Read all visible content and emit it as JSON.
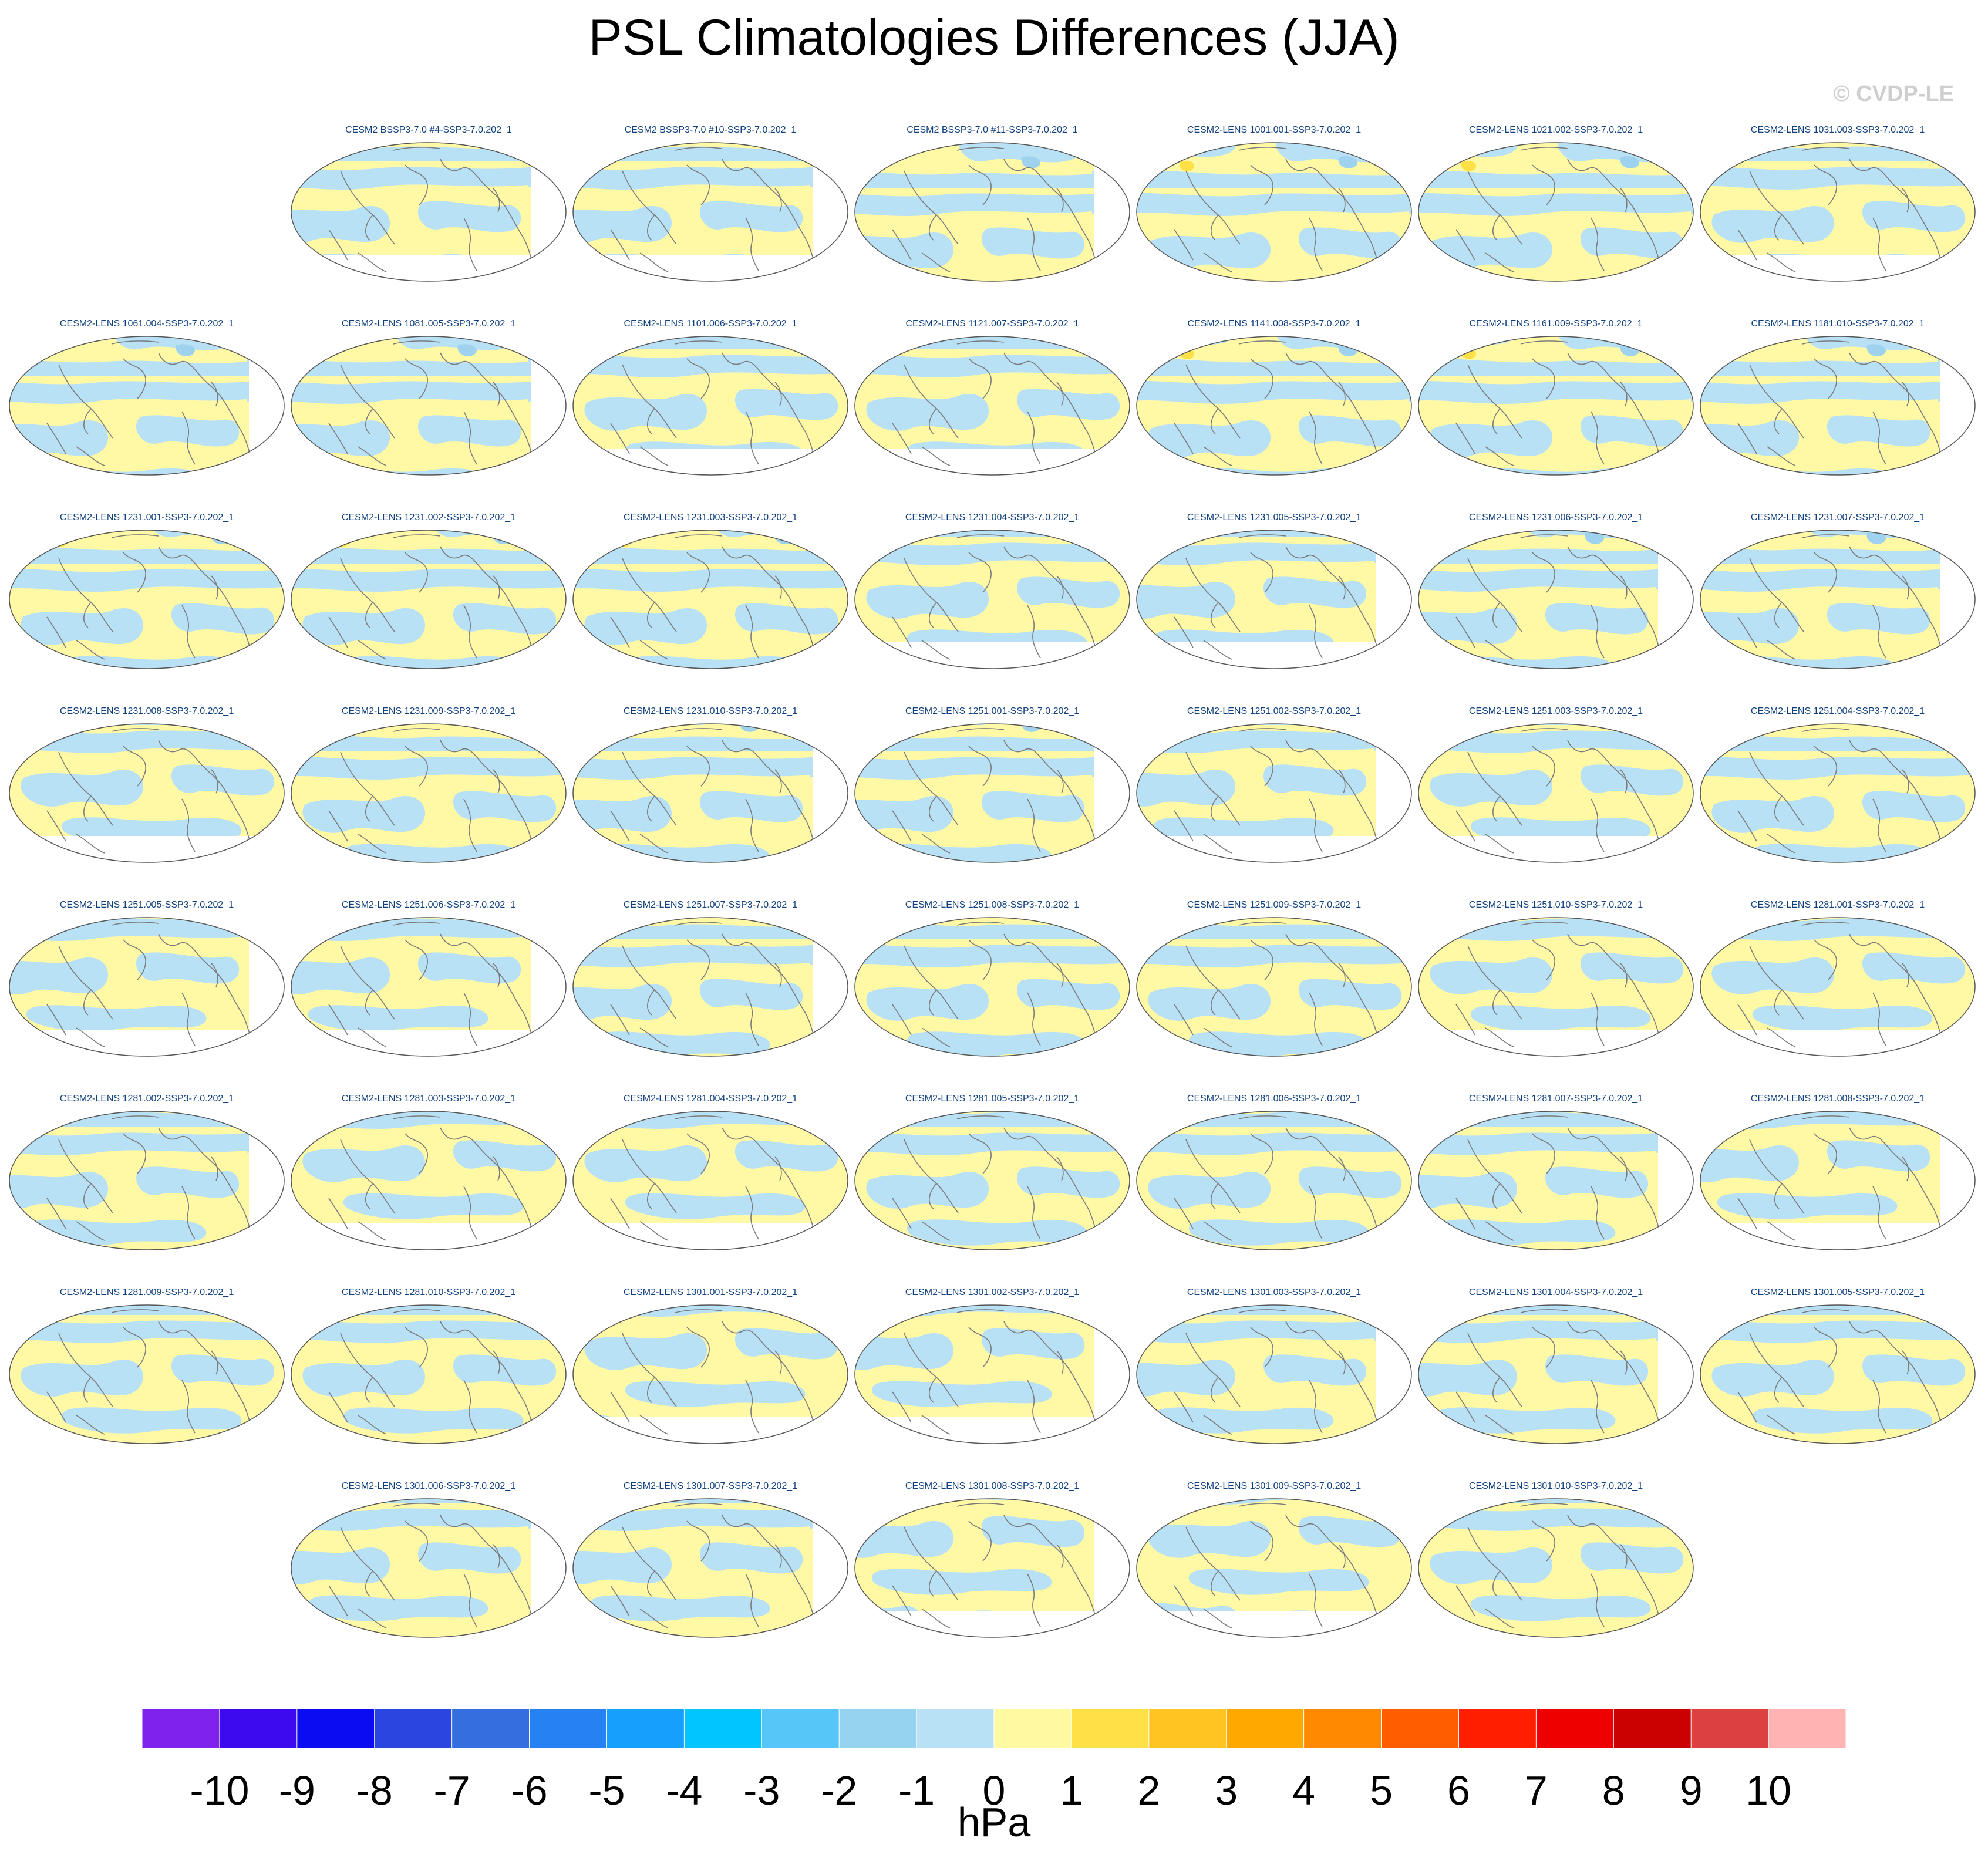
{
  "title": "PSL Climatologies Differences (JJA)",
  "watermark": "© CVDP-LE",
  "colorbar": {
    "units": "hPa",
    "tick_labels": [
      "-10",
      "-9",
      "-8",
      "-7",
      "-6",
      "-5",
      "-4",
      "-3",
      "-2",
      "-1",
      "0",
      "1",
      "2",
      "3",
      "4",
      "5",
      "6",
      "7",
      "8",
      "9",
      "10"
    ],
    "colors": [
      "#7f22ee",
      "#3d0af0",
      "#0c0cf2",
      "#2b45e0",
      "#356ede",
      "#2682f2",
      "#16a0fd",
      "#00c5ff",
      "#56c6f8",
      "#96d3f0",
      "#b8e1f6",
      "#fffaa2",
      "#ffe046",
      "#ffc421",
      "#ffa900",
      "#ff8901",
      "#ff5d00",
      "#ff1f00",
      "#ee0000",
      "#cb0000",
      "#dc4040",
      "#ffb3b3"
    ]
  },
  "chart_data": {
    "type": "heatmap",
    "title": "PSL Climatologies Differences (JJA)",
    "variable": "PSL",
    "season": "JJA",
    "units": "hPa",
    "levels": [
      -10,
      -9,
      -8,
      -7,
      -6,
      -5,
      -4,
      -3,
      -2,
      -1,
      0,
      1,
      2,
      3,
      4,
      5,
      6,
      7,
      8,
      9,
      10
    ],
    "panels": [
      [
        null,
        "CESM2 BSSP3-7.0 #4-SSP3-7.0.202_1",
        "CESM2 BSSP3-7.0 #10-SSP3-7.0.202_1",
        "CESM2 BSSP3-7.0 #11-SSP3-7.0.202_1",
        "CESM2-LENS 1001.001-SSP3-7.0.202_1",
        "CESM2-LENS 1021.002-SSP3-7.0.202_1",
        "CESM2-LENS 1031.003-SSP3-7.0.202_1"
      ],
      [
        "CESM2-LENS 1061.004-SSP3-7.0.202_1",
        "CESM2-LENS 1081.005-SSP3-7.0.202_1",
        "CESM2-LENS 1101.006-SSP3-7.0.202_1",
        "CESM2-LENS 1121.007-SSP3-7.0.202_1",
        "CESM2-LENS 1141.008-SSP3-7.0.202_1",
        "CESM2-LENS 1161.009-SSP3-7.0.202_1",
        "CESM2-LENS 1181.010-SSP3-7.0.202_1"
      ],
      [
        "CESM2-LENS 1231.001-SSP3-7.0.202_1",
        "CESM2-LENS 1231.002-SSP3-7.0.202_1",
        "CESM2-LENS 1231.003-SSP3-7.0.202_1",
        "CESM2-LENS 1231.004-SSP3-7.0.202_1",
        "CESM2-LENS 1231.005-SSP3-7.0.202_1",
        "CESM2-LENS 1231.006-SSP3-7.0.202_1",
        "CESM2-LENS 1231.007-SSP3-7.0.202_1"
      ],
      [
        "CESM2-LENS 1231.008-SSP3-7.0.202_1",
        "CESM2-LENS 1231.009-SSP3-7.0.202_1",
        "CESM2-LENS 1231.010-SSP3-7.0.202_1",
        "CESM2-LENS 1251.001-SSP3-7.0.202_1",
        "CESM2-LENS 1251.002-SSP3-7.0.202_1",
        "CESM2-LENS 1251.003-SSP3-7.0.202_1",
        "CESM2-LENS 1251.004-SSP3-7.0.202_1"
      ],
      [
        "CESM2-LENS 1251.005-SSP3-7.0.202_1",
        "CESM2-LENS 1251.006-SSP3-7.0.202_1",
        "CESM2-LENS 1251.007-SSP3-7.0.202_1",
        "CESM2-LENS 1251.008-SSP3-7.0.202_1",
        "CESM2-LENS 1251.009-SSP3-7.0.202_1",
        "CESM2-LENS 1251.010-SSP3-7.0.202_1",
        "CESM2-LENS 1281.001-SSP3-7.0.202_1"
      ],
      [
        "CESM2-LENS 1281.002-SSP3-7.0.202_1",
        "CESM2-LENS 1281.003-SSP3-7.0.202_1",
        "CESM2-LENS 1281.004-SSP3-7.0.202_1",
        "CESM2-LENS 1281.005-SSP3-7.0.202_1",
        "CESM2-LENS 1281.006-SSP3-7.0.202_1",
        "CESM2-LENS 1281.007-SSP3-7.0.202_1",
        "CESM2-LENS 1281.008-SSP3-7.0.202_1"
      ],
      [
        "CESM2-LENS 1281.009-SSP3-7.0.202_1",
        "CESM2-LENS 1281.010-SSP3-7.0.202_1",
        "CESM2-LENS 1301.001-SSP3-7.0.202_1",
        "CESM2-LENS 1301.002-SSP3-7.0.202_1",
        "CESM2-LENS 1301.003-SSP3-7.0.202_1",
        "CESM2-LENS 1301.004-SSP3-7.0.202_1",
        "CESM2-LENS 1301.005-SSP3-7.0.202_1"
      ],
      [
        null,
        "CESM2-LENS 1301.006-SSP3-7.0.202_1",
        "CESM2-LENS 1301.007-SSP3-7.0.202_1",
        "CESM2-LENS 1301.008-SSP3-7.0.202_1",
        "CESM2-LENS 1301.009-SSP3-7.0.202_1",
        "CESM2-LENS 1301.010-SSP3-7.0.202_1",
        null
      ]
    ]
  }
}
